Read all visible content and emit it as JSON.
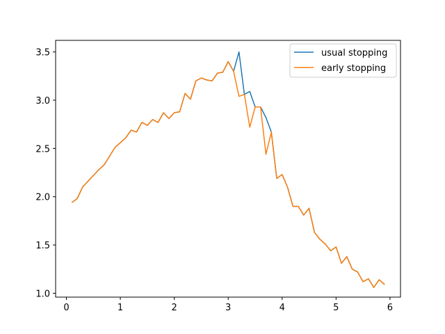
{
  "chart_data": {
    "type": "line",
    "title": "",
    "xlabel": "",
    "ylabel": "",
    "xlim": [
      -0.2,
      6.195
    ],
    "ylim": [
      0.96,
      3.62
    ],
    "xticks": [
      0,
      1,
      2,
      3,
      4,
      5,
      6
    ],
    "xtick_labels": [
      "0",
      "1",
      "2",
      "3",
      "4",
      "5",
      "6"
    ],
    "yticks": [
      1.0,
      1.5,
      2.0,
      2.5,
      3.0,
      3.5
    ],
    "ytick_labels": [
      "1.0",
      "1.5",
      "2.0",
      "2.5",
      "3.0",
      "3.5"
    ],
    "grid": false,
    "legend_position": "top-right",
    "x": [
      0.1,
      0.2,
      0.3,
      0.4,
      0.5,
      0.6,
      0.7,
      0.8,
      0.9,
      1.0,
      1.1,
      1.2,
      1.3,
      1.4,
      1.5,
      1.6,
      1.7,
      1.8,
      1.9,
      2.0,
      2.1,
      2.2,
      2.3,
      2.4,
      2.5,
      2.6,
      2.7,
      2.8,
      2.9,
      3.0,
      3.1,
      3.2,
      3.3,
      3.4,
      3.5,
      3.6,
      3.7,
      3.8,
      3.9,
      4.0,
      4.1,
      4.2,
      4.3,
      4.4,
      4.5,
      4.6,
      4.7,
      4.8,
      4.9,
      5.0,
      5.1,
      5.2,
      5.3,
      5.4,
      5.5,
      5.6,
      5.7,
      5.8,
      5.9
    ],
    "series": [
      {
        "name": "usual stopping",
        "color": "#1f77b4",
        "values": [
          1.94,
          1.98,
          2.1,
          2.16,
          2.22,
          2.28,
          2.33,
          2.42,
          2.51,
          2.56,
          2.61,
          2.69,
          2.67,
          2.77,
          2.74,
          2.8,
          2.77,
          2.87,
          2.81,
          2.87,
          2.88,
          3.07,
          3.01,
          3.2,
          3.23,
          3.21,
          3.2,
          3.28,
          3.29,
          3.4,
          3.3,
          3.5,
          3.06,
          3.09,
          2.93,
          2.93,
          2.82,
          2.67,
          2.19,
          2.23,
          2.1,
          1.9,
          1.9,
          1.81,
          1.88,
          1.63,
          1.56,
          1.51,
          1.44,
          1.48,
          1.31,
          1.38,
          1.25,
          1.22,
          1.12,
          1.15,
          1.06,
          1.14,
          1.09
        ]
      },
      {
        "name": "early stopping",
        "color": "#ff7f0e",
        "values": [
          1.94,
          1.98,
          2.1,
          2.16,
          2.22,
          2.28,
          2.33,
          2.42,
          2.51,
          2.56,
          2.61,
          2.69,
          2.67,
          2.77,
          2.74,
          2.8,
          2.77,
          2.87,
          2.81,
          2.87,
          2.88,
          3.07,
          3.01,
          3.2,
          3.23,
          3.21,
          3.2,
          3.28,
          3.29,
          3.4,
          3.3,
          3.04,
          3.06,
          2.72,
          2.93,
          2.93,
          2.44,
          2.67,
          2.19,
          2.23,
          2.1,
          1.9,
          1.9,
          1.81,
          1.88,
          1.63,
          1.56,
          1.51,
          1.44,
          1.48,
          1.31,
          1.38,
          1.25,
          1.22,
          1.12,
          1.15,
          1.06,
          1.14,
          1.09
        ]
      }
    ]
  }
}
